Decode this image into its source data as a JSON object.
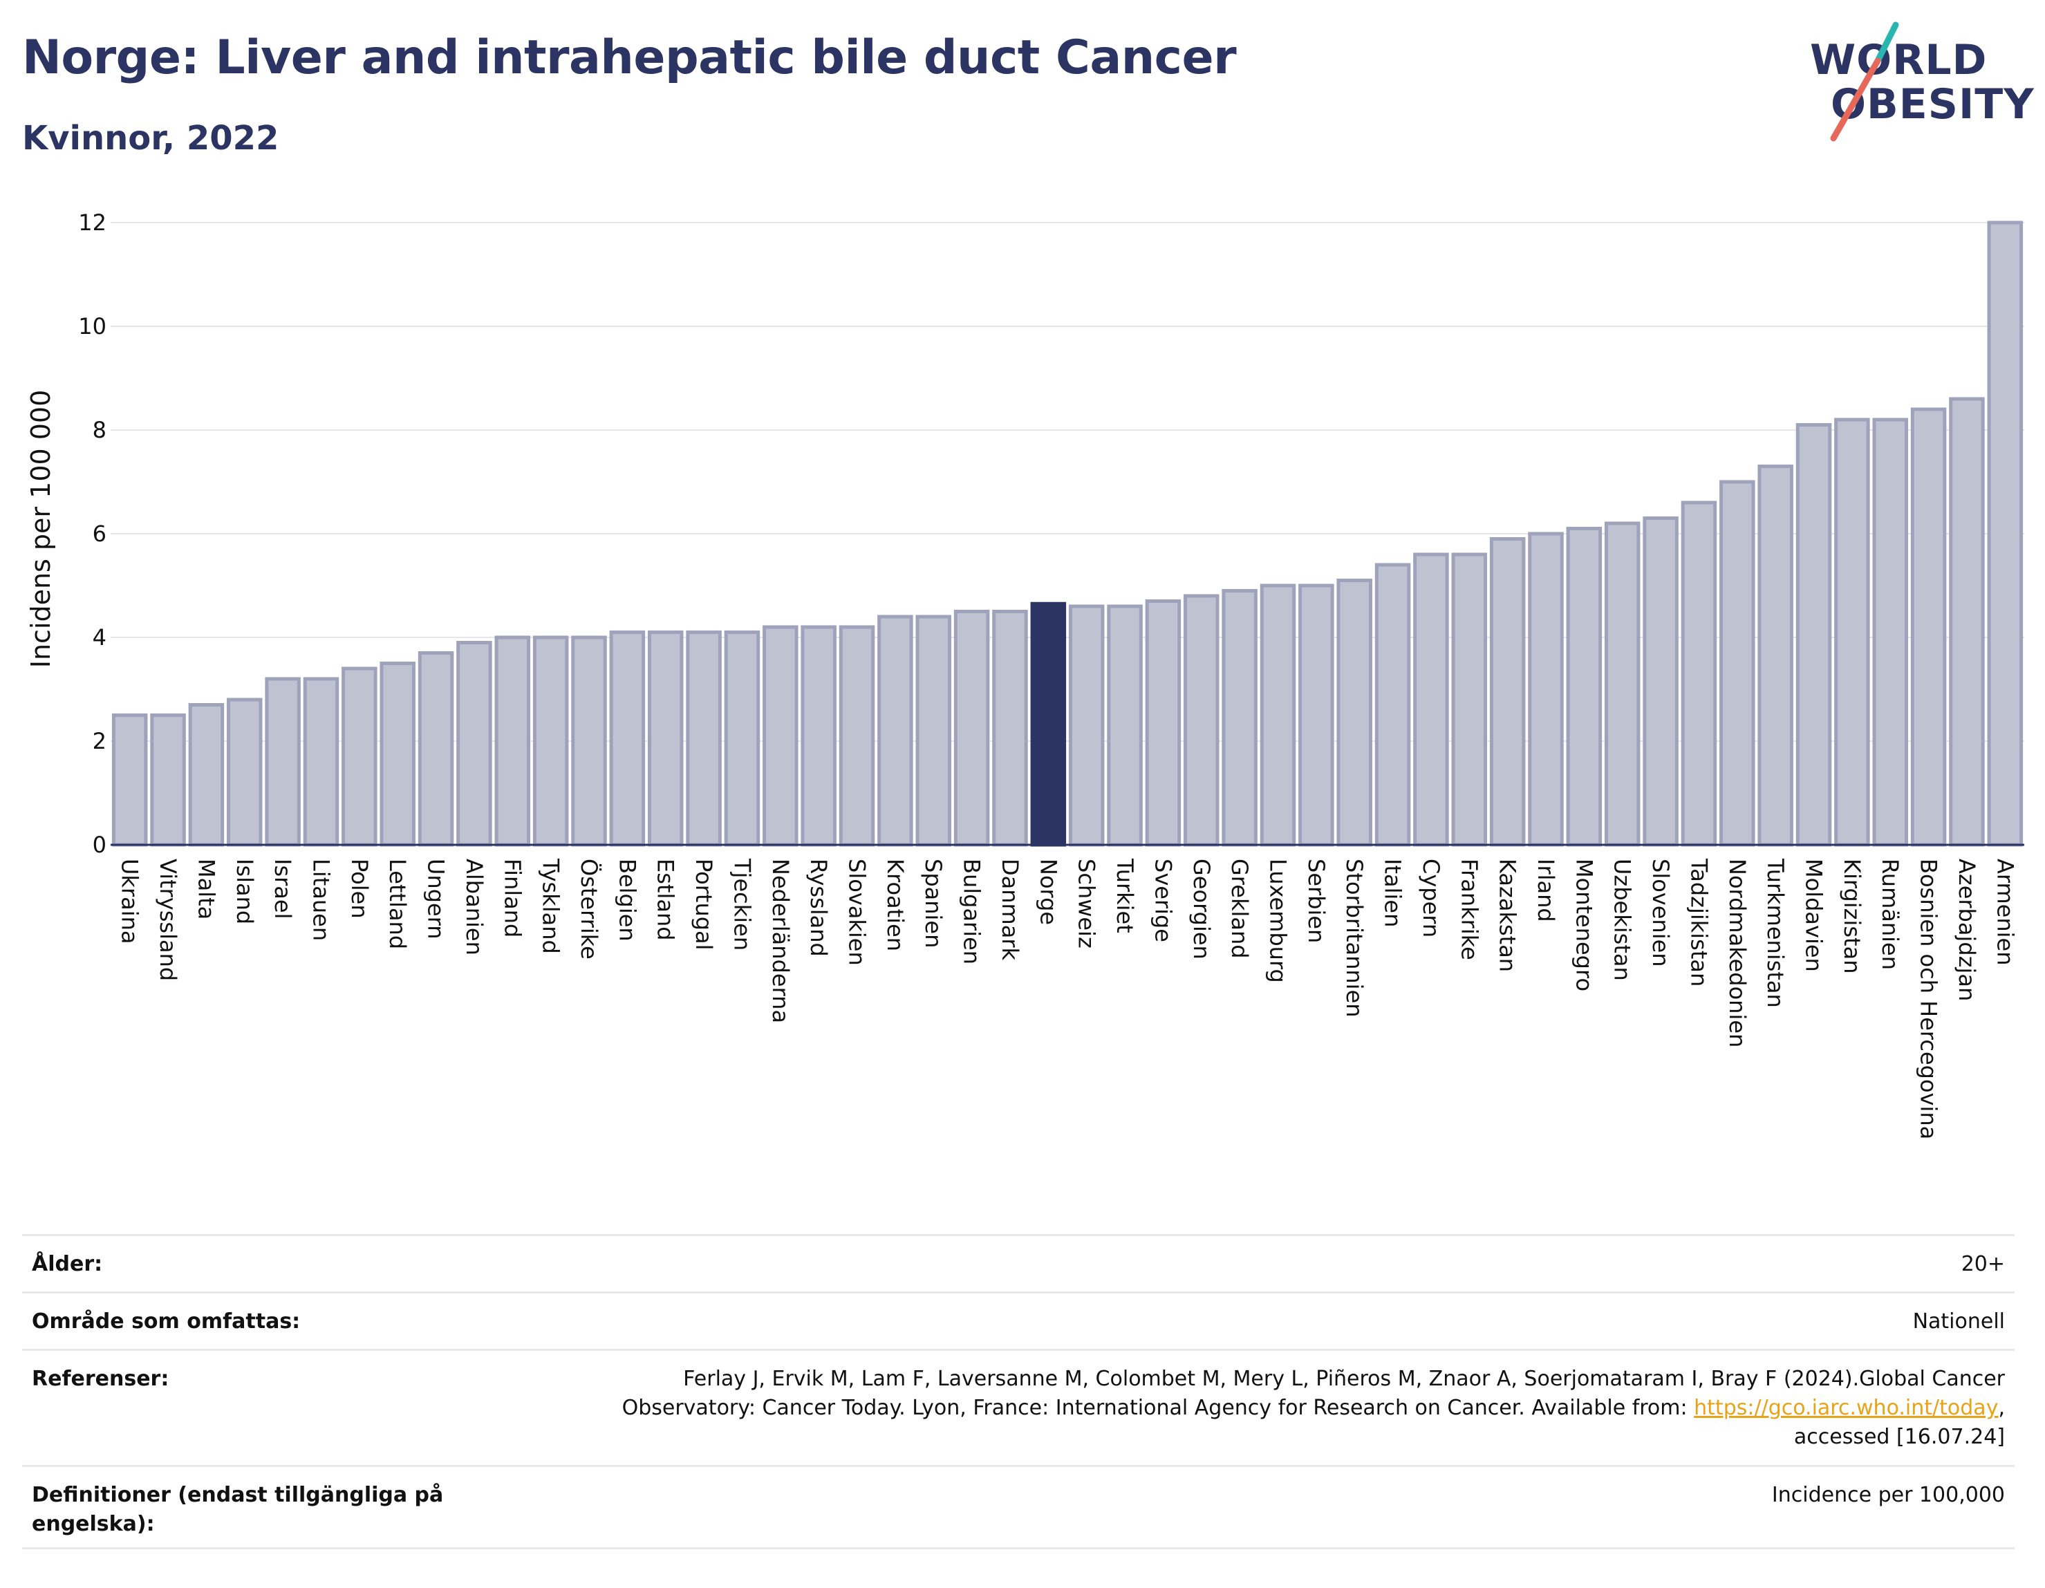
{
  "header": {
    "title": "Norge: Liver and intrahepatic bile duct Cancer",
    "subtitle": "Kvinnor, 2022"
  },
  "logo": {
    "line1": "WORLD",
    "line2": "OBESITY",
    "accent_teal": "#2bb5b0",
    "accent_coral": "#e5685a"
  },
  "colors": {
    "bar_default": "#bfc3d1",
    "bar_border": "#9ea3bb",
    "bar_highlight": "#2b3462",
    "text_dark": "#2b3462"
  },
  "chart_data": {
    "type": "bar",
    "title": "Norge: Liver and intrahepatic bile duct Cancer",
    "subtitle": "Kvinnor, 2022",
    "ylabel": "Incidens per 100 000",
    "xlabel": "",
    "ylim": [
      0,
      12
    ],
    "yticks": [
      0,
      2,
      4,
      6,
      8,
      10,
      12
    ],
    "grid": true,
    "highlight": "Norge",
    "categories": [
      "Ukraina",
      "Vitryssland",
      "Malta",
      "Island",
      "Israel",
      "Litauen",
      "Polen",
      "Lettland",
      "Ungern",
      "Albanien",
      "Finland",
      "Tyskland",
      "Österrike",
      "Belgien",
      "Estland",
      "Portugal",
      "Tjeckien",
      "Nederländerna",
      "Ryssland",
      "Slovakien",
      "Kroatien",
      "Spanien",
      "Bulgarien",
      "Danmark",
      "Norge",
      "Schweiz",
      "Turkiet",
      "Sverige",
      "Georgien",
      "Grekland",
      "Luxemburg",
      "Serbien",
      "Storbritannien",
      "Italien",
      "Cypern",
      "Frankrike",
      "Kazakstan",
      "Irland",
      "Montenegro",
      "Uzbekistan",
      "Slovenien",
      "Tadzjikistan",
      "Nordmakedonien",
      "Turkmenistan",
      "Moldavien",
      "Kirgizistan",
      "Rumänien",
      "Bosnien och Hercegovina",
      "Azerbajdzjan",
      "Armenien"
    ],
    "values": [
      2.5,
      2.5,
      2.7,
      2.8,
      3.2,
      3.2,
      3.4,
      3.5,
      3.7,
      3.9,
      4.0,
      4.0,
      4.0,
      4.1,
      4.1,
      4.1,
      4.1,
      4.2,
      4.2,
      4.2,
      4.4,
      4.4,
      4.5,
      4.5,
      4.65,
      4.6,
      4.6,
      4.7,
      4.8,
      4.9,
      5.0,
      5.0,
      5.1,
      5.4,
      5.6,
      5.6,
      5.9,
      6.0,
      6.1,
      6.2,
      6.3,
      6.6,
      7.0,
      7.3,
      8.1,
      8.2,
      8.2,
      8.4,
      8.6,
      12.0
    ]
  },
  "info": {
    "age_label": "Ålder:",
    "age_value": "20+",
    "area_label": "Område som omfattas:",
    "area_value": "Nationell",
    "ref_label": "Referenser:",
    "ref_line1": "Ferlay J, Ervik M, Lam F, Laversanne M, Colombet M, Mery L, Piñeros M, Znaor A, Soerjomataram I, Bray F (2024).Global Cancer",
    "ref_line2_prefix": "Observatory: Cancer Today. Lyon, France: International Agency for Research on Cancer. Available from: ",
    "ref_link": "https://gco.iarc.who.int/today",
    "ref_line2_suffix": ",",
    "ref_line3": "accessed [16.07.24]",
    "def_label": "Definitioner (endast tillgängliga på engelska):",
    "def_value": "Incidence per 100,000"
  }
}
